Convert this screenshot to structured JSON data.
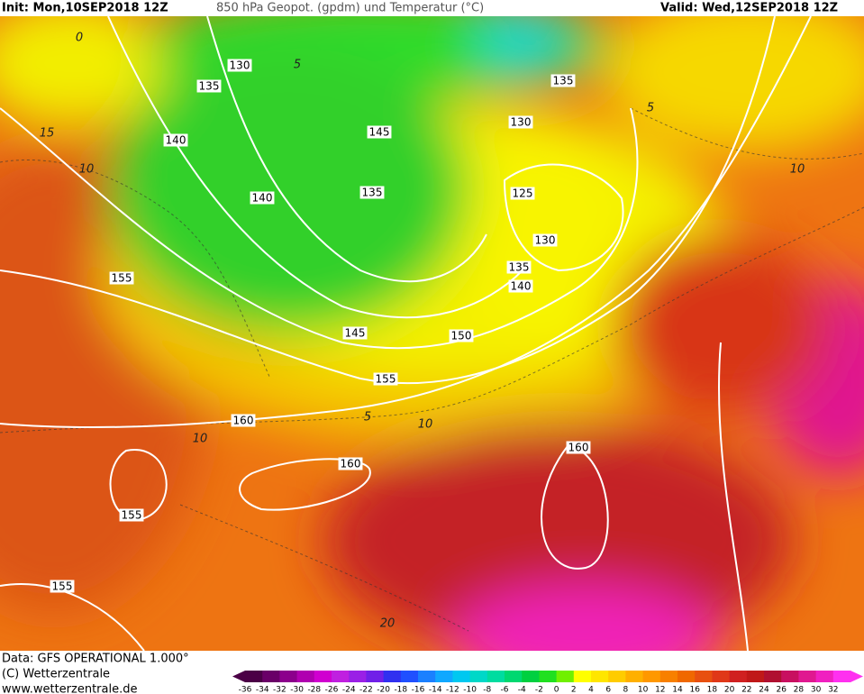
{
  "header": {
    "init": "Init: Mon,10SEP2018 12Z",
    "title": "850 hPa Geopot. (gpdm) und Temperatur (°C)",
    "valid": "Valid: Wed,12SEP2018 12Z"
  },
  "map": {
    "geopotential_labels": [
      "130",
      "135",
      "140",
      "145",
      "140",
      "135",
      "155",
      "145",
      "150",
      "155",
      "160",
      "160",
      "155",
      "155",
      "160",
      "135",
      "130",
      "125",
      "130",
      "135",
      "140"
    ],
    "temperature_labels": [
      "0",
      "5",
      "15",
      "10",
      "5",
      "10",
      "10",
      "5",
      "10",
      "20"
    ]
  },
  "footer": {
    "source": "Data: GFS OPERATIONAL 1.000°",
    "copyright": "(C) Wetterzentrale",
    "url": "www.wetterzentrale.de"
  },
  "colorbar": {
    "labels": [
      -36,
      -34,
      -32,
      -30,
      -28,
      -26,
      -24,
      -22,
      -20,
      -18,
      -16,
      -14,
      -12,
      -10,
      -8,
      -6,
      -4,
      -2,
      0,
      2,
      4,
      6,
      8,
      10,
      12,
      14,
      16,
      18,
      20,
      22,
      24,
      26,
      28,
      30,
      32
    ],
    "colors": [
      "#4b0046",
      "#6a0068",
      "#8c008c",
      "#b000b0",
      "#d000d0",
      "#c020e0",
      "#9a20e6",
      "#7020e8",
      "#3030f0",
      "#2050ff",
      "#1a80ff",
      "#10a8ff",
      "#00c8f0",
      "#00d8c8",
      "#00dca0",
      "#00d870",
      "#00d040",
      "#20e020",
      "#70f000",
      "#ffff00",
      "#ffe600",
      "#ffcc00",
      "#ffb000",
      "#ff9800",
      "#f88000",
      "#f06800",
      "#e85010",
      "#e03818",
      "#d02020",
      "#c01818",
      "#b01030",
      "#c81060",
      "#e01890",
      "#f020c0",
      "#ff30f0"
    ]
  }
}
